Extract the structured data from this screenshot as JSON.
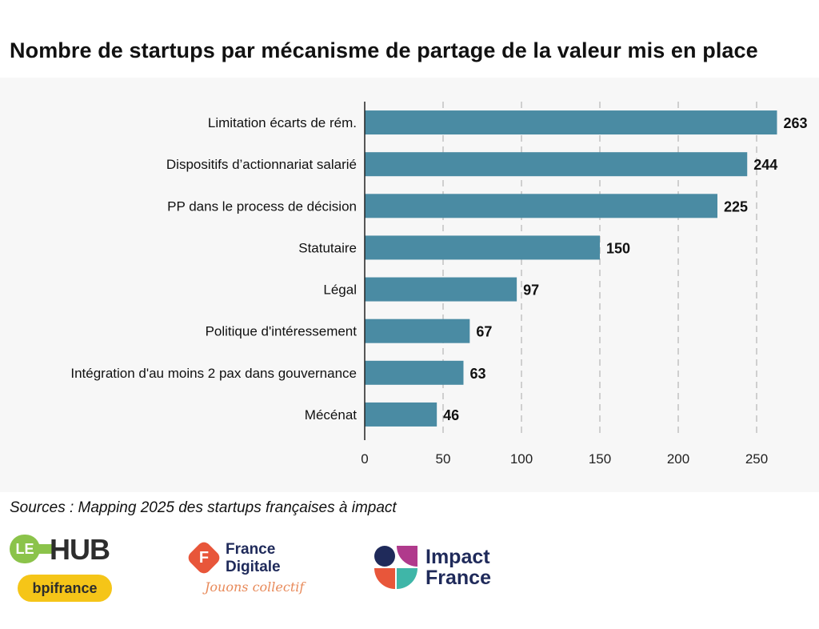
{
  "title": "Nombre de startups par mécanisme de partage de la valeur mis en place",
  "sources": "Sources : Mapping 2025 des startups françaises à impact",
  "logos": {
    "lehub": {
      "le": "LE",
      "hub": "HUB",
      "badge": "bpifrance"
    },
    "france_digitale": {
      "line1": "France",
      "line2": "Digitale",
      "tagline": "Jouons collectif"
    },
    "impact_france": {
      "line1": "Impact",
      "line2": "France"
    }
  },
  "colors": {
    "bar": "#4a8ba3",
    "grid": "#b5b5b5",
    "axis": "#222222",
    "panel": "#f7f7f7"
  },
  "chart_data": {
    "type": "bar",
    "orientation": "horizontal",
    "categories": [
      "Limitation écarts de rém.",
      "Dispositifs d’actionnariat salarié",
      "PP dans le process de décision",
      "Statutaire",
      "Légal",
      "Politique d'intéressement",
      "Intégration d'au moins 2 pax dans gouvernance",
      "Mécénat"
    ],
    "values": [
      263,
      244,
      225,
      150,
      97,
      67,
      63,
      46
    ],
    "xlim": [
      0,
      263
    ],
    "xticks": [
      0,
      50,
      100,
      150,
      200,
      250
    ],
    "grid": "vertical dashed",
    "data_labels": true
  }
}
